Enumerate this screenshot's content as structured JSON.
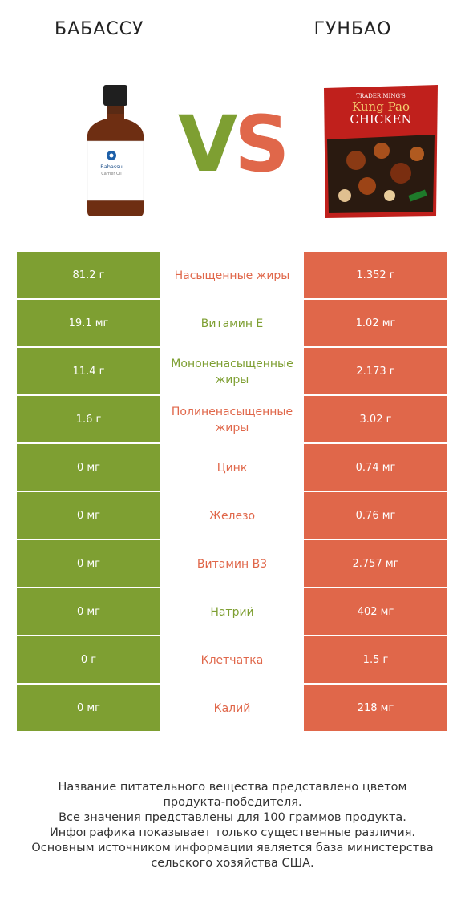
{
  "header": {
    "left_title": "БАБАССУ",
    "right_title": "ГУНБАО",
    "vs_v": "V",
    "vs_s": "S"
  },
  "images": {
    "left_label_brand": "Babassu",
    "left_label_sub": "Carrier Oil",
    "right_label_brand": "TRADER MING'S",
    "right_label_line1": "Kung Pao",
    "right_label_line2": "CHICKEN"
  },
  "colors": {
    "left": "#7e9f32",
    "right": "#e0674a"
  },
  "chart_data": {
    "type": "table",
    "series": [
      {
        "name": "БАБАССУ",
        "values": [
          "81.2 г",
          "19.1 мг",
          "11.4 г",
          "1.6 г",
          "0 мг",
          "0 мг",
          "0 мг",
          "0 мг",
          "0 г",
          "0 мг"
        ]
      },
      {
        "name": "ГУНБАО",
        "values": [
          "1.352 г",
          "1.02 мг",
          "2.173 г",
          "3.02 г",
          "0.74 мг",
          "0.76 мг",
          "2.757 мг",
          "402 мг",
          "1.5 г",
          "218 мг"
        ]
      }
    ],
    "categories": [
      "Насыщенные жиры",
      "Витамин E",
      "Мононенасыщенные жиры",
      "Полиненасыщенные жиры",
      "Цинк",
      "Железо",
      "Витамин B3",
      "Натрий",
      "Клетчатка",
      "Калий"
    ],
    "winner": [
      "right",
      "left",
      "left",
      "right",
      "right",
      "right",
      "right",
      "left",
      "right",
      "right"
    ]
  },
  "footer": {
    "line1": "Название питательного вещества представлено цветом",
    "line2": "продукта-победителя.",
    "line3": "Все значения представлены для 100 граммов продукта.",
    "line4": "Инфографика показывает только существенные различия.",
    "line5": "Основным источником информации является база министерства",
    "line6": "сельского хозяйства США."
  }
}
